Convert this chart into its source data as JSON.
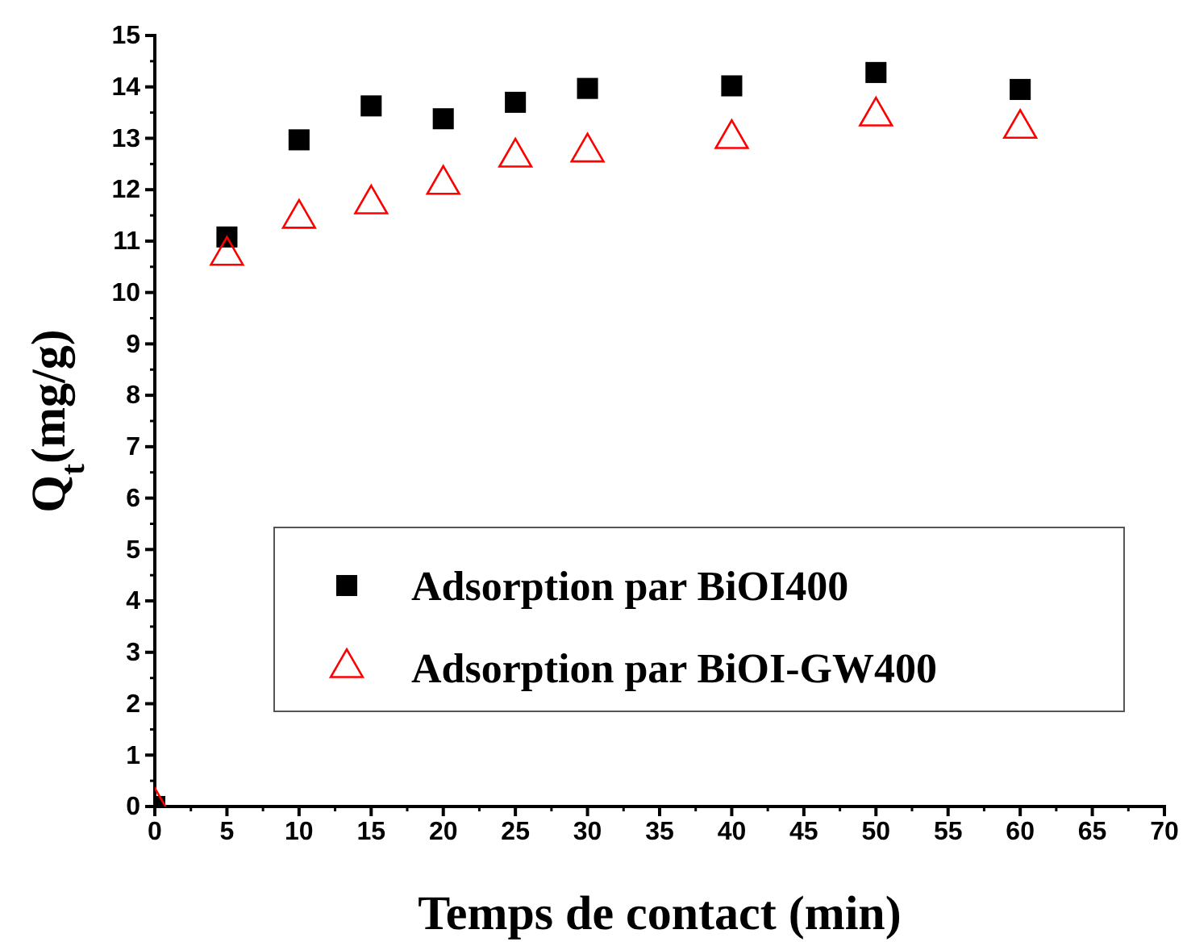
{
  "chart_data": {
    "type": "scatter",
    "xlabel": "Temps de contact (min)",
    "ylabel": "Q$_{t}$(mg/g)",
    "xlim": [
      0,
      70
    ],
    "xticks": [
      0,
      5,
      10,
      15,
      20,
      25,
      30,
      35,
      40,
      45,
      50,
      55,
      60,
      65,
      70
    ],
    "ylim": [
      0,
      15
    ],
    "yticks": [
      0,
      1,
      2,
      3,
      4,
      5,
      6,
      7,
      8,
      9,
      10,
      11,
      12,
      13,
      14,
      15
    ],
    "x": [
      0,
      5,
      10,
      15,
      20,
      25,
      30,
      40,
      50,
      60
    ],
    "series": [
      {
        "name": "Adsorption par BiOI400",
        "color": "#000000",
        "marker": "square",
        "values": [
          0,
          11.08,
          12.97,
          13.63,
          13.38,
          13.7,
          13.97,
          14.02,
          14.28,
          13.95
        ]
      },
      {
        "name": "Adsorption par BiOI-GW400",
        "color": "#ff0000",
        "marker": "triangle",
        "values": [
          0,
          10.72,
          11.44,
          11.72,
          12.1,
          12.63,
          12.73,
          12.99,
          13.43,
          13.19
        ]
      }
    ],
    "legend": "bottom right",
    "grid": false
  }
}
